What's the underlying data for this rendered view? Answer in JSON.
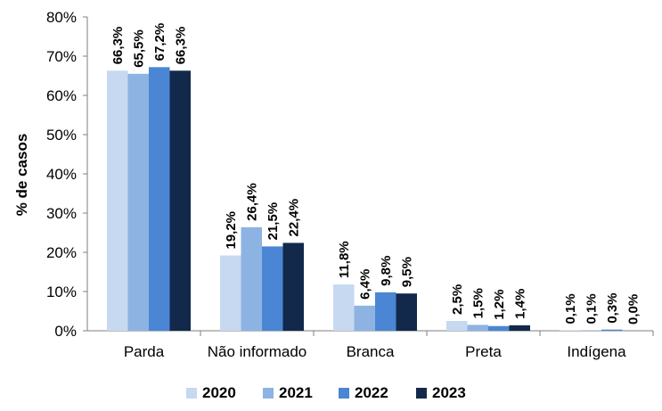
{
  "chart_data": {
    "type": "bar",
    "ylabel": "% de casos",
    "ylim": [
      0,
      80
    ],
    "yticks": [
      "0%",
      "10%",
      "20%",
      "30%",
      "40%",
      "50%",
      "60%",
      "70%",
      "80%"
    ],
    "categories": [
      "Parda",
      "Não informado",
      "Branca",
      "Preta",
      "Indígena"
    ],
    "series": [
      {
        "name": "2020",
        "color": "#c6d9f1",
        "values": [
          66.3,
          19.2,
          11.8,
          2.5,
          0.1
        ],
        "labels": [
          "66,3%",
          "19,2%",
          "11,8%",
          "2,5%",
          "0,1%"
        ]
      },
      {
        "name": "2021",
        "color": "#8db3e2",
        "values": [
          65.5,
          26.4,
          6.4,
          1.5,
          0.1
        ],
        "labels": [
          "65,5%",
          "26,4%",
          "6,4%",
          "1,5%",
          "0,1%"
        ]
      },
      {
        "name": "2022",
        "color": "#4a86d4",
        "values": [
          67.2,
          21.5,
          9.8,
          1.2,
          0.3
        ],
        "labels": [
          "67,2%",
          "21,5%",
          "9,8%",
          "1,2%",
          "0,3%"
        ]
      },
      {
        "name": "2023",
        "color": "#13294b",
        "values": [
          66.3,
          22.4,
          9.5,
          1.4,
          0.0
        ],
        "labels": [
          "66,3%",
          "22,4%",
          "9,5%",
          "1,4%",
          "0,0%"
        ]
      }
    ],
    "legend_position": "bottom",
    "grid": false
  }
}
